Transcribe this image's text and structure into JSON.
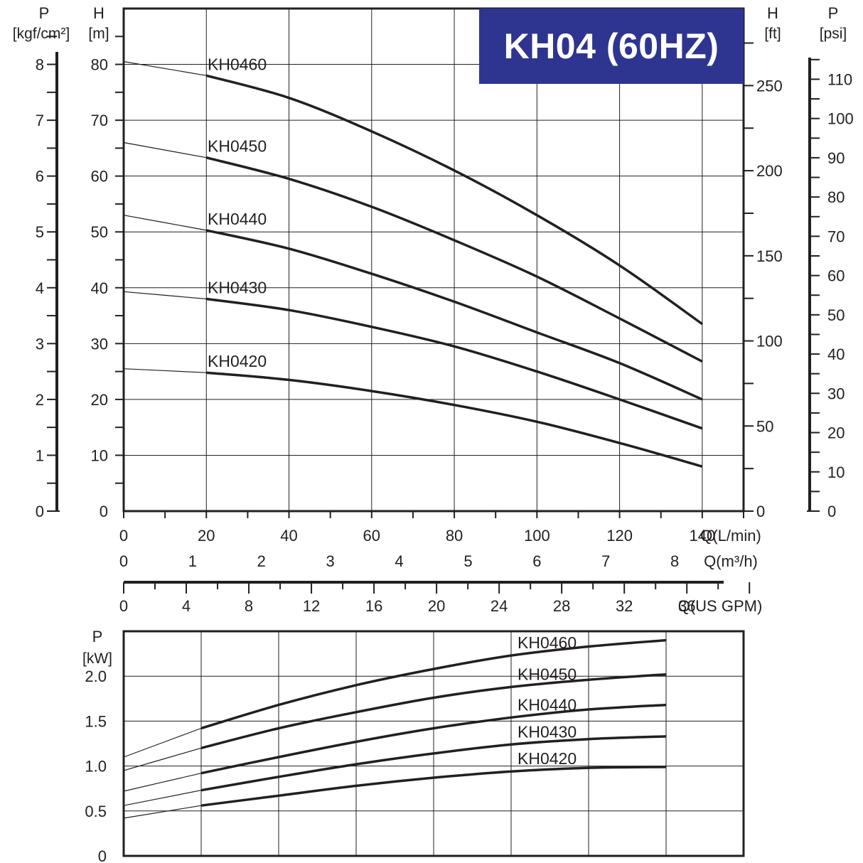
{
  "title": "KH04 (60HZ)",
  "chart_data": [
    {
      "type": "line",
      "panel": "head-curve",
      "x_unit": "Q(L/min)",
      "x2_unit": "Q(m³/h)",
      "x3_unit": "Q(US GPM)",
      "xlim": [
        0,
        150
      ],
      "x_ticks": [
        0,
        20,
        40,
        60,
        80,
        100,
        120,
        140
      ],
      "x2_ticks": [
        0,
        1,
        2,
        3,
        4,
        5,
        6,
        7,
        8
      ],
      "x3_ticks": [
        0,
        4,
        8,
        12,
        16,
        20,
        24,
        28,
        32,
        36
      ],
      "ylim": [
        0,
        90
      ],
      "y_left_label": "H",
      "y_left_unit": "[m]",
      "y_ticks": [
        0,
        10,
        20,
        30,
        40,
        50,
        60,
        70,
        80
      ],
      "y_press_label": "P",
      "y_press_unit": "[kgf/cm²]",
      "y_press_ticks": [
        0,
        1,
        2,
        3,
        4,
        5,
        6,
        7,
        8
      ],
      "y_right_label": "H",
      "y_right_unit": "[ft]",
      "y_right_ticks": [
        0,
        50,
        100,
        150,
        200,
        250
      ],
      "y_psi_label": "P",
      "y_psi_unit": "[psi]",
      "y_psi_ticks": [
        0,
        10,
        20,
        30,
        40,
        50,
        60,
        70,
        80,
        90,
        100,
        110
      ],
      "operating_range": [
        20,
        140
      ],
      "series": [
        {
          "name": "KH0460",
          "x": [
            0,
            20,
            40,
            60,
            80,
            100,
            120,
            140
          ],
          "y": [
            80.5,
            78,
            74,
            68,
            61,
            53,
            44,
            33.5
          ]
        },
        {
          "name": "KH0450",
          "x": [
            0,
            20,
            40,
            60,
            80,
            100,
            120,
            140
          ],
          "y": [
            66,
            63.3,
            59.5,
            54.5,
            48.5,
            42,
            34.5,
            26.8
          ]
        },
        {
          "name": "KH0440",
          "x": [
            0,
            20,
            40,
            60,
            80,
            100,
            120,
            140
          ],
          "y": [
            53,
            50.3,
            47,
            42.5,
            37.5,
            32,
            26.5,
            20
          ]
        },
        {
          "name": "KH0430",
          "x": [
            0,
            20,
            40,
            60,
            80,
            100,
            120,
            140
          ],
          "y": [
            39.3,
            38,
            36,
            33,
            29.5,
            25,
            20,
            14.8
          ]
        },
        {
          "name": "KH0420",
          "x": [
            0,
            20,
            40,
            60,
            80,
            100,
            120,
            140
          ],
          "y": [
            25.5,
            24.8,
            23.5,
            21.5,
            19,
            16,
            12.2,
            8
          ]
        }
      ]
    },
    {
      "type": "line",
      "panel": "power-curve",
      "xlim": [
        0,
        160
      ],
      "ylim": [
        0,
        2.5
      ],
      "y_label": "P",
      "y_unit": "[kW]",
      "y_ticks": [
        0,
        0.5,
        1.0,
        1.5,
        2.0
      ],
      "y_tick_labels": [
        "0",
        "0.5",
        "1.0",
        "1.5",
        "2.0"
      ],
      "operating_range": [
        20,
        140
      ],
      "series": [
        {
          "name": "KH0460",
          "x": [
            0,
            20,
            40,
            60,
            80,
            100,
            120,
            140
          ],
          "y": [
            1.1,
            1.42,
            1.68,
            1.9,
            2.08,
            2.23,
            2.33,
            2.4
          ]
        },
        {
          "name": "KH0450",
          "x": [
            0,
            20,
            40,
            60,
            80,
            100,
            120,
            140
          ],
          "y": [
            0.95,
            1.2,
            1.42,
            1.6,
            1.76,
            1.88,
            1.96,
            2.02
          ]
        },
        {
          "name": "KH0440",
          "x": [
            0,
            20,
            40,
            60,
            80,
            100,
            120,
            140
          ],
          "y": [
            0.72,
            0.92,
            1.1,
            1.27,
            1.42,
            1.54,
            1.63,
            1.68
          ]
        },
        {
          "name": "KH0430",
          "x": [
            0,
            20,
            40,
            60,
            80,
            100,
            120,
            140
          ],
          "y": [
            0.56,
            0.73,
            0.88,
            1.02,
            1.14,
            1.24,
            1.3,
            1.33
          ]
        },
        {
          "name": "KH0420",
          "x": [
            0,
            20,
            40,
            60,
            80,
            100,
            120,
            140
          ],
          "y": [
            0.42,
            0.56,
            0.67,
            0.78,
            0.87,
            0.94,
            0.98,
            0.99
          ]
        }
      ]
    }
  ]
}
